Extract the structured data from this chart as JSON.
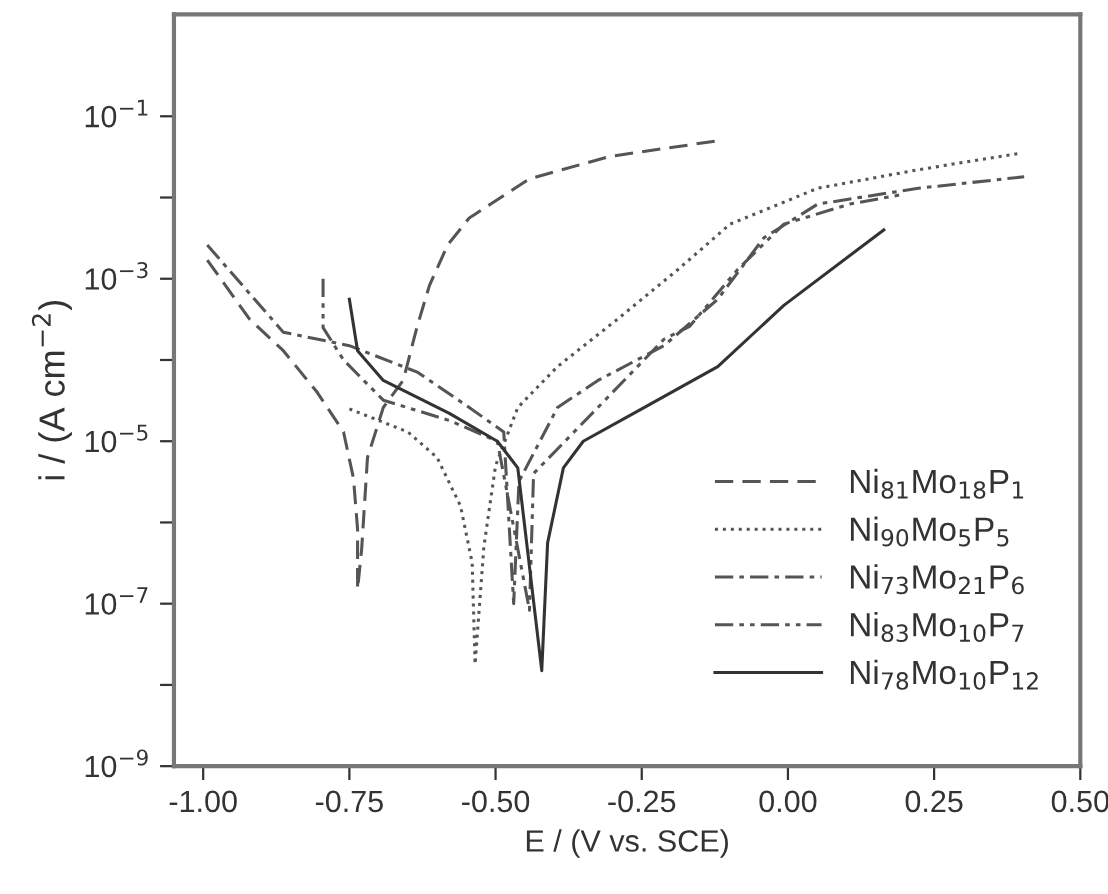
{
  "chart_data": {
    "type": "line",
    "xlabel": "E / (V vs. SCE)",
    "ylabel": "i / (A cm$^{−2}$)",
    "log": "y",
    "xlim": [
      -1.05,
      0.5
    ],
    "ylim": [
      1e-09,
      1.8
    ],
    "xticks": [
      {
        "value": -1.0,
        "label": "-1.00"
      },
      {
        "value": -0.75,
        "label": "-0.75"
      },
      {
        "value": -0.5,
        "label": "-0.50"
      },
      {
        "value": -0.25,
        "label": "-0.25"
      },
      {
        "value": 0.0,
        "label": "0.00"
      },
      {
        "value": 0.25,
        "label": "0.25"
      },
      {
        "value": 0.5,
        "label": "0.50"
      }
    ],
    "yticks": [
      {
        "value": 1e-09,
        "label": "10$^{−9}$"
      },
      {
        "value": 1e-08,
        "label": null
      },
      {
        "value": 1e-07,
        "label": "10$^{−7}$"
      },
      {
        "value": 1e-06,
        "label": null
      },
      {
        "value": 1e-05,
        "label": "10$^{−5}$"
      },
      {
        "value": 0.0001,
        "label": null
      },
      {
        "value": 0.001,
        "label": "10$^{−3}$"
      },
      {
        "value": 0.01,
        "label": null
      },
      {
        "value": 0.1,
        "label": "10$^{−1}$"
      }
    ],
    "grid": false,
    "legend": "lower right",
    "marker": "none",
    "series": [
      {
        "name": "Ni$_{81}$Mo$_{18}$P$_{1}$",
        "color": "#555555",
        "line_style": "dashed",
        "x": [
          -0.993,
          -0.921,
          -0.863,
          -0.805,
          -0.76,
          -0.743,
          -0.736,
          -0.736,
          -0.729,
          -0.719,
          -0.692,
          -0.658,
          -0.634,
          -0.613,
          -0.582,
          -0.545,
          -0.442,
          -0.305,
          -0.12
        ],
        "values": [
          0.0017,
          0.00032,
          0.00013,
          4e-05,
          1.3e-05,
          3.5e-06,
          8.3e-07,
          1.5e-07,
          4.7e-07,
          6.3e-06,
          2.6e-05,
          5.6e-05,
          0.00026,
          0.00083,
          0.0026,
          0.0056,
          0.017,
          0.032,
          0.05
        ]
      },
      {
        "name": "Ni$_{90}$Mo$_{5}$P$_{5}$",
        "color": "#555555",
        "line_style": "dotted",
        "x": [
          -0.75,
          -0.65,
          -0.6,
          -0.56,
          -0.54,
          -0.535,
          -0.52,
          -0.5,
          -0.462,
          -0.394,
          -0.291,
          -0.188,
          -0.099,
          0.051,
          0.223,
          0.397
        ],
        "values": [
          2.5e-05,
          1.3e-05,
          6.3e-06,
          1.6e-06,
          3.2e-07,
          1.8e-08,
          5e-07,
          5e-06,
          2.6e-05,
          8.3e-05,
          0.00032,
          0.0013,
          0.0047,
          0.013,
          0.022,
          0.035
        ]
      },
      {
        "name": "Ni$_{73}$Mo$_{21}$P$_{6}$",
        "color": "#555555",
        "line_style": "dashdot",
        "x": [
          -0.993,
          -0.863,
          -0.75,
          -0.634,
          -0.545,
          -0.486,
          -0.469,
          -0.46,
          -0.394,
          -0.325,
          -0.212,
          -0.12,
          -0.041,
          0.051,
          0.223,
          0.404
        ],
        "values": [
          0.0026,
          0.00022,
          0.00015,
          7.1e-05,
          2.6e-05,
          1.3e-05,
          1e-07,
          3.2e-06,
          2.6e-05,
          5.6e-05,
          0.00015,
          0.00056,
          0.0032,
          0.0083,
          0.013,
          0.018
        ]
      },
      {
        "name": "Ni$_{83}$Mo$_{10}$P$_{7}$",
        "color": "#555555",
        "line_style": "dashdotdot",
        "x": [
          -0.795,
          -0.795,
          -0.76,
          -0.692,
          -0.579,
          -0.497,
          -0.442,
          -0.435,
          -0.325,
          -0.212,
          -0.168,
          -0.086,
          -0.007,
          0.106,
          0.199
        ],
        "values": [
          0.001,
          0.00025,
          0.0001,
          3.2e-05,
          1.8e-05,
          1e-05,
          8.3e-08,
          4e-06,
          2.6e-05,
          0.00018,
          0.00026,
          0.0013,
          0.0047,
          0.0083,
          0.011
        ]
      },
      {
        "name": "Ni$_{78}$Mo$_{10}$P$_{12}$",
        "color": "#333333",
        "line_style": "solid",
        "x": [
          -0.75,
          -0.736,
          -0.692,
          -0.579,
          -0.497,
          -0.462,
          -0.421,
          -0.411,
          -0.384,
          -0.35,
          -0.25,
          -0.12,
          -0.007,
          0.164
        ],
        "values": [
          0.00056,
          0.00013,
          5.6e-05,
          2.2e-05,
          1e-05,
          4.7e-06,
          1.5e-08,
          5.6e-07,
          4.7e-06,
          1e-05,
          2.5e-05,
          8.3e-05,
          0.00047,
          0.004
        ]
      }
    ]
  }
}
